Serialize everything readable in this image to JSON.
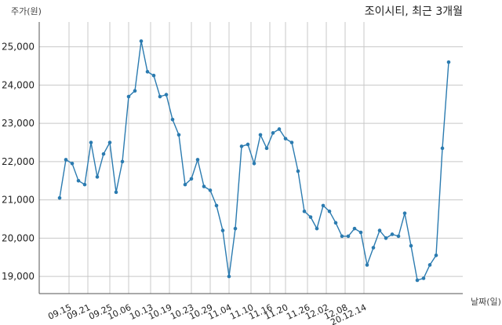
{
  "chart_data": {
    "type": "line",
    "title": "조이시티, 최근 3개월",
    "ylabel": "주가(원)",
    "xlabel": "날짜(일)",
    "ylim": [
      18550,
      25650
    ],
    "yticks": [
      19000,
      20000,
      21000,
      22000,
      23000,
      24000,
      25000
    ],
    "ytick_labels": [
      "19,000",
      "20,000",
      "21,000",
      "22,000",
      "23,000",
      "24,000",
      "25,000"
    ],
    "xtick_labels": [
      "09.15",
      "09.21",
      "09.25",
      "10.06",
      "10.13",
      "10.19",
      "10.23",
      "10.29",
      "11.04",
      "11.10",
      "11.16",
      "11.20",
      "11.26",
      "12.02",
      "12.08",
      "20.12.14"
    ],
    "xtick_index": [
      1.5,
      4.5,
      8.0,
      11.0,
      14.5,
      17.5,
      21.0,
      24.0,
      27.0,
      30.5,
      33.5,
      36.0,
      39.5,
      42.5,
      45.5,
      48.5
    ],
    "grid": true,
    "series": [
      {
        "color": "#2b7bb0",
        "values": [
          21050,
          22050,
          21950,
          21500,
          21400,
          22500,
          21600,
          22200,
          22500,
          21200,
          22000,
          23700,
          23850,
          25150,
          24350,
          24250,
          23700,
          23750,
          23100,
          22700,
          21400,
          21550,
          22050,
          21350,
          21250,
          20850,
          20200,
          19000,
          20250,
          22400,
          22450,
          21950,
          22700,
          22350,
          22750,
          22850,
          22600,
          22500,
          21750,
          20700,
          20550,
          20250,
          20850,
          20700,
          20400,
          20050,
          20050,
          20250,
          20150,
          19300,
          19750,
          20200,
          20000,
          20100,
          20050,
          20650,
          19800,
          18900,
          18950,
          19300,
          19550,
          22350,
          24600
        ]
      }
    ]
  }
}
